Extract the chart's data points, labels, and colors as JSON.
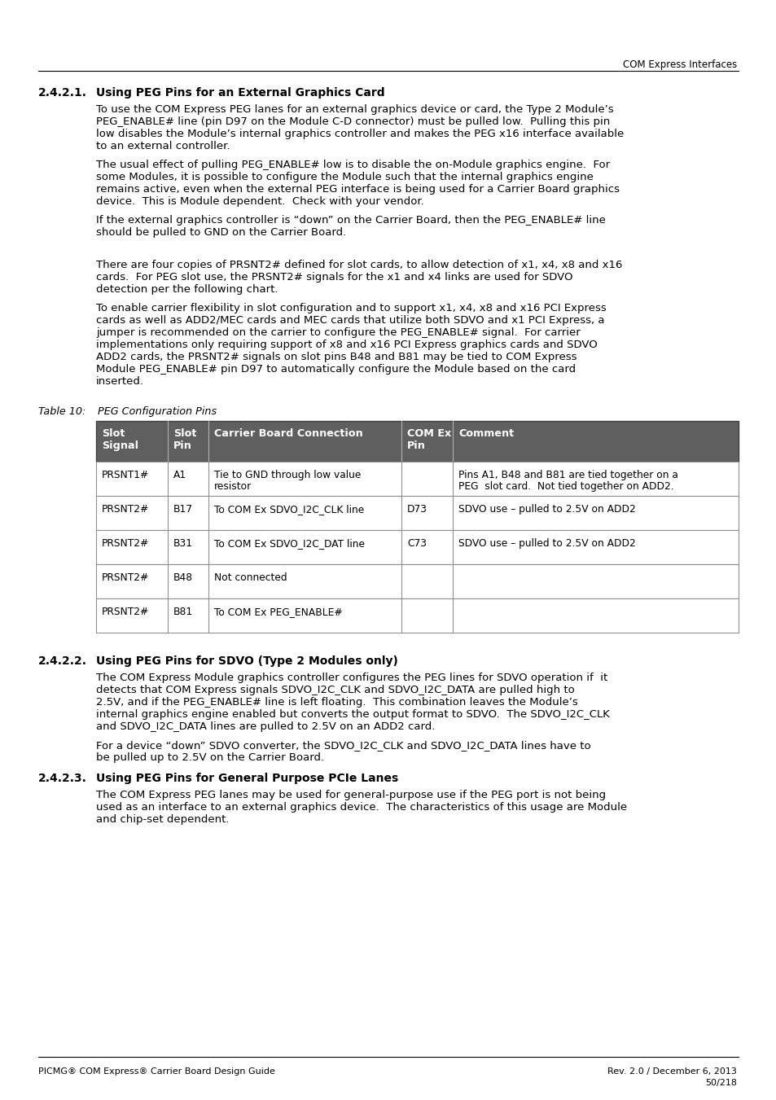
{
  "header_right": "COM Express Interfaces",
  "footer_left": "PICMG® COM Express® Carrier Board Design Guide",
  "footer_right_line1": "Rev. 2.0 / December 6, 2013",
  "footer_right_line2": "50/218",
  "sec1_num": "2.4.2.1.",
  "sec1_title": "Using PEG Pins for an External Graphics Card",
  "sec1_p1": [
    "To use the COM Express PEG lanes for an external graphics device or card, the Type 2 Module’s",
    "PEG_ENABLE# line (pin D97 on the Module C-D connector) must be pulled low.  Pulling this pin",
    "low disables the Module’s internal graphics controller and makes the PEG x16 interface available",
    "to an external controller."
  ],
  "sec1_p2": [
    "The usual effect of pulling PEG_ENABLE# low is to disable the on-Module graphics engine.  For",
    "some Modules, it is possible to configure the Module such that the internal graphics engine",
    "remains active, even when the external PEG interface is being used for a Carrier Board graphics",
    "device.  This is Module dependent.  Check with your vendor."
  ],
  "sec1_p3": [
    "If the external graphics controller is “down” on the Carrier Board, then the PEG_ENABLE# line",
    "should be pulled to GND on the Carrier Board."
  ],
  "sec1_p4": [
    "There are four copies of PRSNT2# defined for slot cards, to allow detection of x1, x4, x8 and x16",
    "cards.  For PEG slot use, the PRSNT2# signals for the x1 and x4 links are used for SDVO",
    "detection per the following chart."
  ],
  "sec1_p5": [
    "To enable carrier flexibility in slot configuration and to support x1, x4, x8 and x16 PCI Express",
    "cards as well as ADD2/MEC cards and MEC cards that utilize both SDVO and x1 PCI Express, a",
    "jumper is recommended on the carrier to configure the PEG_ENABLE# signal.  For carrier",
    "implementations only requiring support of x8 and x16 PCI Express graphics cards and SDVO",
    "ADD2 cards, the PRSNT2# signals on slot pins B48 and B81 may be tied to COM Express",
    "Module PEG_ENABLE# pin D97 to automatically configure the Module based on the card",
    "inserted."
  ],
  "table_cap1": "Table 10:",
  "table_cap2": "PEG Configuration Pins",
  "table_col_headers": [
    "Slot\nSignal",
    "Slot\nPin",
    "Carrier Board Connection",
    "COM Ex\nPin",
    "Comment"
  ],
  "table_header_bg": "#5f5f5f",
  "table_rows": [
    [
      "PRSNT1#",
      "A1",
      "Tie to GND through low value\nresistor",
      "",
      "Pins A1, B48 and B81 are tied together on a\nPEG  slot card.  Not tied together on ADD2."
    ],
    [
      "PRSNT2#",
      "B17",
      "To COM Ex SDVO_I2C_CLK line",
      "D73",
      "SDVO use – pulled to 2.5V on ADD2"
    ],
    [
      "PRSNT2#",
      "B31",
      "To COM Ex SDVO_I2C_DAT line",
      "C73",
      "SDVO use – pulled to 2.5V on ADD2"
    ],
    [
      "PRSNT2#",
      "B48",
      "Not connected",
      "",
      ""
    ],
    [
      "PRSNT2#",
      "B81",
      "To COM Ex PEG_ENABLE#",
      "",
      ""
    ]
  ],
  "sec2_num": "2.4.2.2.",
  "sec2_title": "Using PEG Pins for SDVO (Type 2 Modules only)",
  "sec2_p1": [
    "The COM Express Module graphics controller configures the PEG lines for SDVO operation if  it",
    "detects that COM Express signals SDVO_I2C_CLK and SDVO_I2C_DATA are pulled high to",
    "2.5V, and if the PEG_ENABLE# line is left floating.  This combination leaves the Module’s",
    "internal graphics engine enabled but converts the output format to SDVO.  The SDVO_I2C_CLK",
    "and SDVO_I2C_DATA lines are pulled to 2.5V on an ADD2 card."
  ],
  "sec2_p2": [
    "For a device “down” SDVO converter, the SDVO_I2C_CLK and SDVO_I2C_DATA lines have to",
    "be pulled up to 2.5V on the Carrier Board."
  ],
  "sec3_num": "2.4.2.3.",
  "sec3_title": "Using PEG Pins for General Purpose PCIe Lanes",
  "sec3_p1": [
    "The COM Express PEG lanes may be used for general-purpose use if the PEG port is not being",
    "used as an interface to an external graphics device.  The characteristics of this usage are Module",
    "and chip-set dependent."
  ]
}
